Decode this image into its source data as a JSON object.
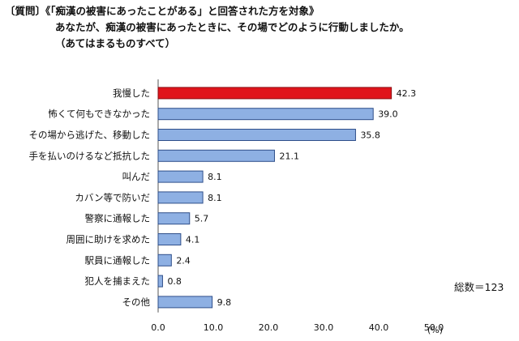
{
  "header": {
    "line1": "〔質問〕《「痴漢の被害にあったことがある」と回答された方を対象》",
    "line2": "あなたが、痴漢の被害にあったときに、その場でどのように行動しましたか。",
    "line3": "（あてはまるものすべて）"
  },
  "note": "総数＝123",
  "unit": "(%)",
  "colors": {
    "highlight": "#e0141b",
    "bar": "#8eb0e3",
    "bar_stroke": "#2f4f8a"
  },
  "chart_data": {
    "type": "bar",
    "orientation": "horizontal",
    "categories": [
      "我慢した",
      "怖くて何もできなかった",
      "その場から逃げた、移動した",
      "手を払いのけるなど抵抗した",
      "叫んだ",
      "カバン等で防いだ",
      "警察に通報した",
      "周囲に助けを求めた",
      "駅員に通報した",
      "犯人を捕まえた",
      "その他"
    ],
    "values": [
      42.3,
      39.0,
      35.8,
      21.1,
      8.1,
      8.1,
      5.7,
      4.1,
      2.4,
      0.8,
      9.8
    ],
    "value_labels": [
      "42.3",
      "39.0",
      "35.8",
      "21.1",
      "8.1",
      "8.1",
      "5.7",
      "4.1",
      "2.4",
      "0.8",
      "9.8"
    ],
    "highlight_index": 0,
    "xlim": [
      0,
      50
    ],
    "xticks": [
      0,
      10,
      20,
      30,
      40,
      50
    ],
    "xtick_labels": [
      "0.0",
      "10.0",
      "20.0",
      "30.0",
      "40.0",
      "50.0"
    ],
    "grid": false,
    "legend": "none"
  }
}
